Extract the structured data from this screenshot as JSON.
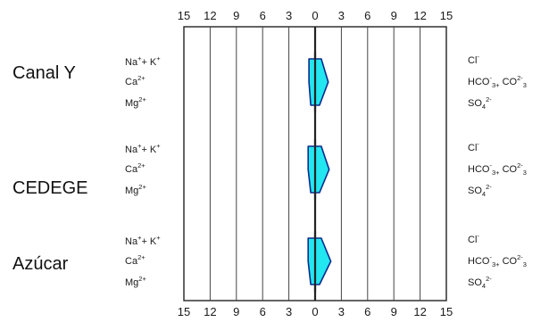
{
  "chart_data": {
    "type": "stiff",
    "title": "",
    "xlabel": "",
    "ylabel": "",
    "xlim": [
      -15,
      15
    ],
    "ticks": [
      "15",
      "12",
      "9",
      "6",
      "3",
      "0",
      "3",
      "6",
      "9",
      "12",
      "15"
    ],
    "tick_values": [
      -15,
      -12,
      -9,
      -6,
      -3,
      0,
      3,
      6,
      9,
      12,
      15
    ],
    "fill_color": "#22e6f0",
    "outline_color": "#0b2a8c",
    "samples": [
      {
        "name": "Canal Y",
        "cations": [
          {
            "label": [
              "Na",
              "+",
              "+ K",
              "+"
            ],
            "value": 0.7
          },
          {
            "label": [
              "Ca",
              "2+"
            ],
            "value": 0.7
          },
          {
            "label": [
              "Mg",
              "2+"
            ],
            "value": 0.5
          }
        ],
        "anions": [
          {
            "label": [
              "Cl",
              "-"
            ],
            "value": 0.7
          },
          {
            "label": [
              "HCO",
              "-",
              "3+",
              " CO",
              "2-",
              "3"
            ],
            "value": 1.5
          },
          {
            "label": [
              "SO",
              "4",
              "2-"
            ],
            "value": 0.5
          }
        ]
      },
      {
        "name": "CEDEGE",
        "cations": [
          {
            "label": [
              "Na",
              "+",
              "+ K",
              "+"
            ],
            "value": 0.8
          },
          {
            "label": [
              "Ca",
              "2+"
            ],
            "value": 0.8
          },
          {
            "label": [
              "Mg",
              "2+"
            ],
            "value": 0.5
          }
        ],
        "anions": [
          {
            "label": [
              "Cl",
              "-"
            ],
            "value": 0.7
          },
          {
            "label": [
              "HCO",
              "-",
              "3+",
              " CO",
              "2-",
              "3"
            ],
            "value": 1.6
          },
          {
            "label": [
              "SO",
              "4",
              "2-"
            ],
            "value": 0.5
          }
        ]
      },
      {
        "name": "Azúcar",
        "cations": [
          {
            "label": [
              "Na",
              "+",
              "+ K",
              "+"
            ],
            "value": 0.8
          },
          {
            "label": [
              "Ca",
              "2+"
            ],
            "value": 0.8
          },
          {
            "label": [
              "Mg",
              "2+"
            ],
            "value": 0.5
          }
        ],
        "anions": [
          {
            "label": [
              "Cl",
              "-"
            ],
            "value": 0.7
          },
          {
            "label": [
              "HCO",
              "-",
              "3+",
              " CO",
              "2-",
              "3"
            ],
            "value": 1.8
          },
          {
            "label": [
              "SO",
              "4",
              "2-"
            ],
            "value": 0.5
          }
        ]
      }
    ]
  }
}
